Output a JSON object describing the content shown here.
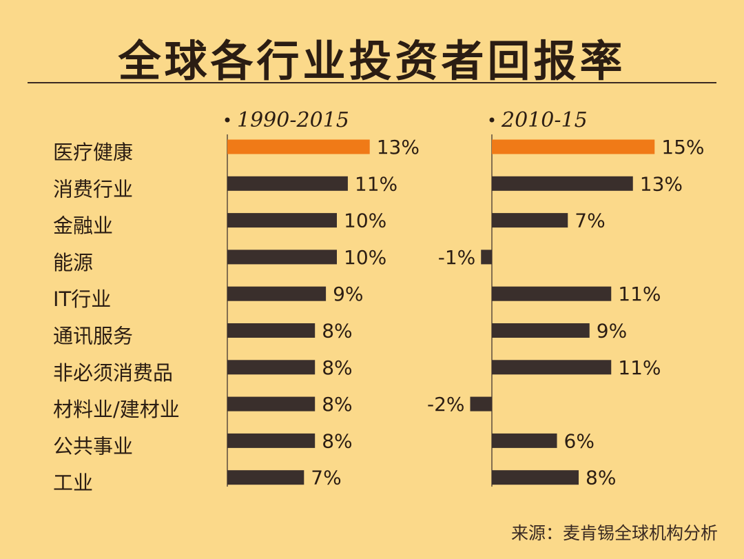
{
  "title": "全球各行业投资者回报率",
  "source": "来源：麦肯锡全球机构分析",
  "colors": {
    "background": "#FBD98A",
    "highlight_bar": "#F07A17",
    "bar": "#3A2F2C",
    "axis": "#5b4a3c",
    "text": "#2b1d13"
  },
  "chart_data": {
    "type": "bar",
    "orientation": "horizontal",
    "unit": "%",
    "categories": [
      "医疗健康",
      "消费行业",
      "金融业",
      "能源",
      "IT行业",
      "通讯服务",
      "非必须消费品",
      "材料业/建材业",
      "公共事业",
      "工业"
    ],
    "highlight_index": 0,
    "series": [
      {
        "name": "1990-2015",
        "values": [
          13,
          11,
          10,
          10,
          9,
          8,
          8,
          8,
          8,
          7
        ],
        "labels": [
          "13%",
          "11%",
          "10%",
          "10%",
          "9%",
          "8%",
          "8%",
          "8%",
          "8%",
          "7%"
        ]
      },
      {
        "name": "2010-15",
        "values": [
          15,
          13,
          7,
          -1,
          11,
          9,
          11,
          -2,
          6,
          8
        ],
        "labels": [
          "15%",
          "13%",
          "7%",
          "-1%",
          "11%",
          "9%",
          "11%",
          "-2%",
          "6%",
          "8%"
        ]
      }
    ],
    "grid": false,
    "legend": "none"
  }
}
